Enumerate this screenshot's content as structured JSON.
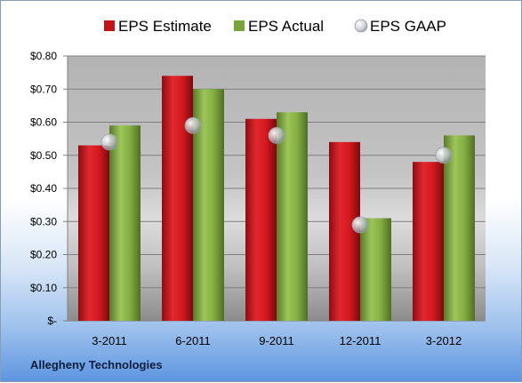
{
  "company": "Allegheny Technologies",
  "colors": {
    "estimate": "#c3141a",
    "actual": "#79a33b",
    "gaap": "#c8ccd2"
  },
  "chart_data": {
    "type": "bar",
    "title": "",
    "xlabel": "",
    "ylabel": "",
    "categories": [
      "3-2011",
      "6-2011",
      "9-2011",
      "12-2011",
      "3-2012"
    ],
    "series": [
      {
        "name": "EPS Estimate",
        "kind": "bar",
        "values": [
          0.53,
          0.74,
          0.61,
          0.54,
          0.48
        ]
      },
      {
        "name": "EPS Actual",
        "kind": "bar",
        "values": [
          0.59,
          0.7,
          0.63,
          0.31,
          0.56
        ]
      },
      {
        "name": "EPS GAAP",
        "kind": "marker",
        "values": [
          0.54,
          0.59,
          0.56,
          0.29,
          0.5
        ]
      }
    ],
    "ylim": [
      0,
      0.8
    ],
    "yticks": [
      {
        "value": 0.8,
        "label": "$0.80"
      },
      {
        "value": 0.7,
        "label": "$0.70"
      },
      {
        "value": 0.6,
        "label": "$0.60"
      },
      {
        "value": 0.5,
        "label": "$0.50"
      },
      {
        "value": 0.4,
        "label": "$0.40"
      },
      {
        "value": 0.3,
        "label": "$0.30"
      },
      {
        "value": 0.2,
        "label": "$0.20"
      },
      {
        "value": 0.1,
        "label": "$0.10"
      },
      {
        "value": 0,
        "label": "$-"
      }
    ],
    "grid": true,
    "legend_position": "top"
  }
}
